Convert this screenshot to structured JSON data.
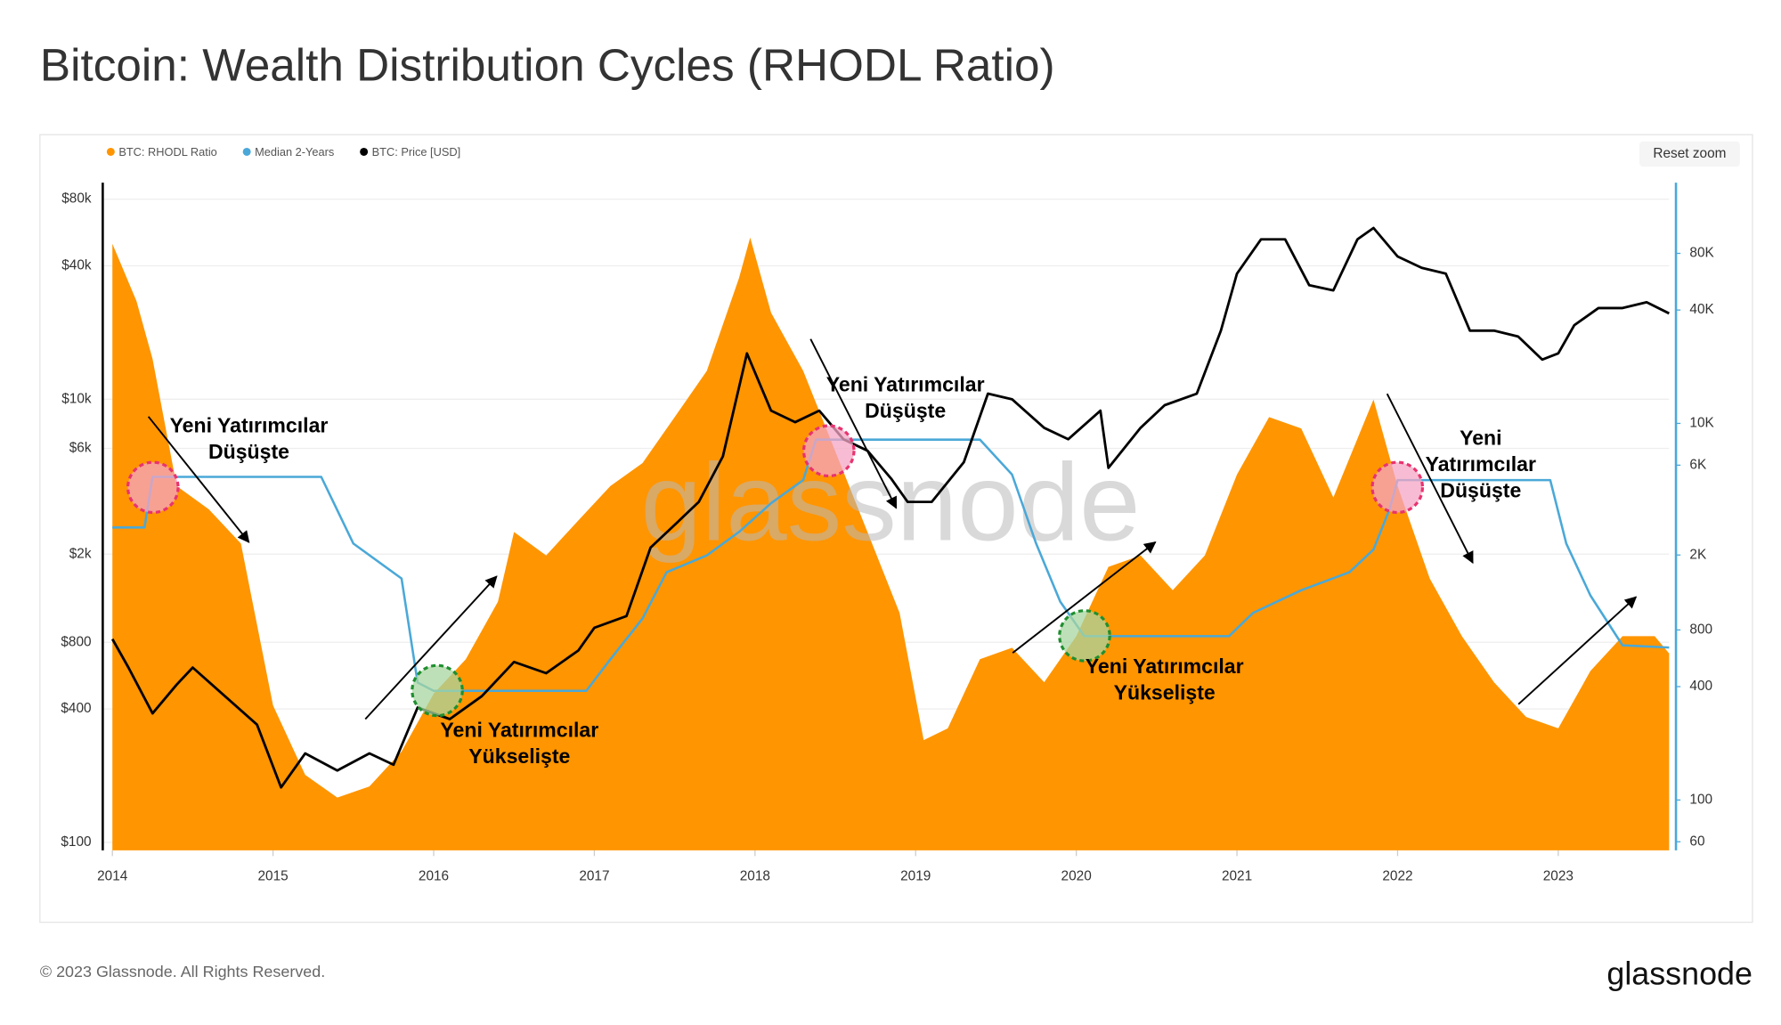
{
  "chart_data": {
    "type": "line",
    "title": "Bitcoin: Wealth Distribution Cycles (RHODL Ratio)",
    "reset_zoom": "Reset zoom",
    "watermark": "glassnode",
    "footer": "© 2023 Glassnode. All Rights Reserved.",
    "brand": "glassnode",
    "log_scale": true,
    "grid": true,
    "legend": "top-left",
    "xlim": [
      2013.94,
      2023.69
    ],
    "xticks": [
      2014,
      2015,
      2016,
      2017,
      2018,
      2019,
      2020,
      2021,
      2022,
      2023
    ],
    "ylim": [
      92,
      95000
    ],
    "yticks": [
      {
        "value": 100,
        "label": "$100"
      },
      {
        "value": 400,
        "label": "$400"
      },
      {
        "value": 800,
        "label": "$800"
      },
      {
        "value": 2000,
        "label": "$2k"
      },
      {
        "value": 6000,
        "label": "$6k"
      },
      {
        "value": 10000,
        "label": "$10k"
      },
      {
        "value": 40000,
        "label": "$40k"
      },
      {
        "value": 80000,
        "label": "$80k"
      }
    ],
    "y2lim": [
      54,
      190000
    ],
    "y2ticks": [
      60,
      100,
      400,
      800,
      {
        "value": 2000,
        "label": "2K"
      },
      {
        "value": 6000,
        "label": "6K"
      },
      {
        "value": 10000,
        "label": "10K"
      },
      {
        "value": 40000,
        "label": "40K"
      },
      {
        "value": 80000,
        "label": "80K"
      }
    ],
    "series": [
      {
        "name": "BTC: RHODL Ratio",
        "color": "#ff9500",
        "kind": "area",
        "axis": "y2",
        "x": [
          2014.0,
          2014.15,
          2014.25,
          2014.4,
          2014.6,
          2014.8,
          2015.0,
          2015.2,
          2015.4,
          2015.6,
          2015.8,
          2016.0,
          2016.2,
          2016.4,
          2016.5,
          2016.7,
          2016.9,
          2017.1,
          2017.3,
          2017.5,
          2017.7,
          2017.9,
          2017.97,
          2018.1,
          2018.3,
          2018.5,
          2018.7,
          2018.9,
          2019.05,
          2019.2,
          2019.4,
          2019.6,
          2019.8,
          2020.0,
          2020.2,
          2020.4,
          2020.6,
          2020.8,
          2021.0,
          2021.2,
          2021.4,
          2021.6,
          2021.85,
          2022.0,
          2022.2,
          2022.4,
          2022.6,
          2022.8,
          2023.0,
          2023.2,
          2023.4,
          2023.6,
          2023.69
        ],
        "values": [
          90000,
          44600,
          22000,
          4650,
          3500,
          2300,
          318,
          136,
          103,
          118,
          181,
          367,
          559,
          1130,
          2650,
          1990,
          3050,
          4650,
          6160,
          10800,
          19000,
          59000,
          97000,
          38700,
          19000,
          7100,
          2650,
          985,
          208,
          240,
          559,
          643,
          422,
          741,
          1730,
          1990,
          1300,
          1990,
          5350,
          10800,
          9400,
          4040,
          13400,
          4650,
          1500,
          741,
          422,
          276,
          240,
          484,
          741,
          741,
          600
        ]
      },
      {
        "name": "Median 2-Years",
        "color": "#4aa8d8",
        "kind": "line",
        "axis": "y2",
        "x": [
          2014.0,
          2014.2,
          2014.25,
          2015.3,
          2015.5,
          2015.8,
          2015.9,
          2016.0,
          2016.95,
          2017.1,
          2017.3,
          2017.45,
          2017.7,
          2017.9,
          2018.1,
          2018.3,
          2018.38,
          2019.4,
          2019.6,
          2019.75,
          2019.9,
          2020.05,
          2020.95,
          2021.1,
          2021.4,
          2021.7,
          2021.85,
          2021.95,
          2022.0,
          2022.95,
          2023.05,
          2023.2,
          2023.4,
          2023.69
        ],
        "values": [
          2800,
          2800,
          5200,
          5200,
          2300,
          1500,
          420,
          380,
          380,
          559,
          920,
          1620,
          1990,
          2650,
          3770,
          5000,
          8200,
          8200,
          5350,
          2300,
          1130,
          741,
          741,
          985,
          1300,
          1620,
          2140,
          3500,
          5000,
          5000,
          2300,
          1220,
          663,
          645
        ]
      },
      {
        "name": "BTC: Price [USD]",
        "color": "#000000",
        "kind": "line",
        "axis": "y",
        "x": [
          2014.0,
          2014.1,
          2014.25,
          2014.4,
          2014.5,
          2014.7,
          2014.9,
          2015.05,
          2015.2,
          2015.4,
          2015.6,
          2015.75,
          2015.9,
          2016.1,
          2016.3,
          2016.5,
          2016.7,
          2016.9,
          2017.0,
          2017.2,
          2017.35,
          2017.5,
          2017.65,
          2017.8,
          2017.95,
          2018.1,
          2018.25,
          2018.4,
          2018.55,
          2018.7,
          2018.85,
          2018.95,
          2019.1,
          2019.3,
          2019.45,
          2019.6,
          2019.8,
          2019.95,
          2020.15,
          2020.2,
          2020.4,
          2020.55,
          2020.75,
          2020.9,
          2021.0,
          2021.15,
          2021.3,
          2021.45,
          2021.6,
          2021.75,
          2021.85,
          2022.0,
          2022.15,
          2022.3,
          2022.45,
          2022.6,
          2022.75,
          2022.9,
          2023.0,
          2023.1,
          2023.25,
          2023.4,
          2023.55,
          2023.69
        ],
        "values": [
          827,
          615,
          382,
          515,
          615,
          457,
          340,
          177,
          252,
          211,
          252,
          224,
          406,
          360,
          457,
          652,
          580,
          734,
          930,
          1050,
          2140,
          2710,
          3440,
          5520,
          16100,
          8880,
          7880,
          8880,
          6600,
          5860,
          4360,
          3440,
          3440,
          5200,
          10600,
          10000,
          7430,
          6600,
          8880,
          4900,
          7430,
          9400,
          10600,
          20400,
          36900,
          52700,
          52700,
          32700,
          31000,
          52700,
          59300,
          44100,
          39200,
          36900,
          20400,
          20400,
          19200,
          15100,
          16100,
          21600,
          25800,
          25800,
          27400,
          24400
        ]
      }
    ],
    "annotations": [
      {
        "lines": [
          "Yeni Yatırımcılar",
          "Düşüşte"
        ]
      },
      {
        "lines": [
          "Yeni Yatırımcılar",
          "Yükselişte"
        ]
      },
      {
        "lines": [
          "Yeni Yatırımcılar",
          "Düşüşte"
        ]
      },
      {
        "lines": [
          "Yeni Yatırımcılar",
          "Yükselişte"
        ]
      },
      {
        "lines": [
          "Yeni",
          "Yatırımcılar",
          "Düşüşte"
        ]
      }
    ]
  }
}
